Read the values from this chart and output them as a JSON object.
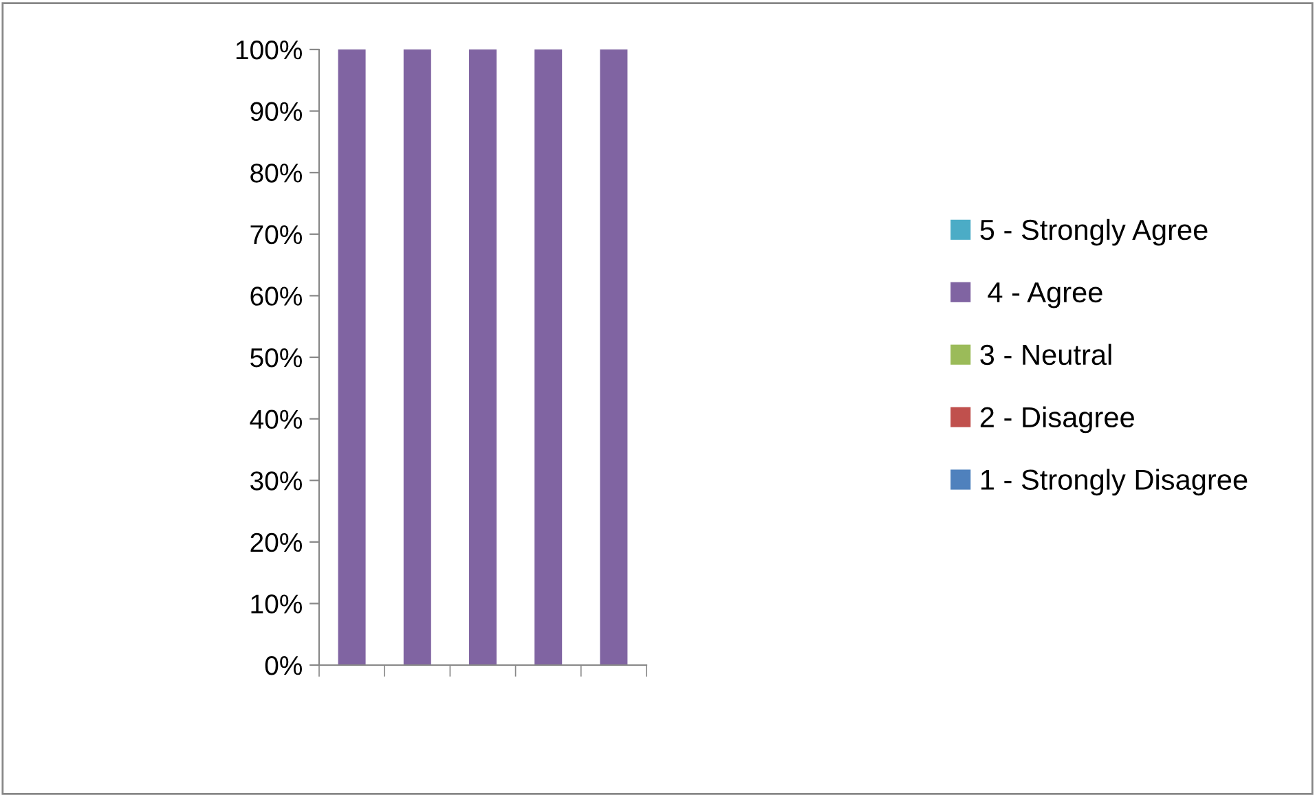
{
  "chart_data": {
    "type": "bar",
    "stacked": true,
    "categories": [
      null,
      null,
      null,
      null,
      null
    ],
    "series": [
      {
        "name": "1 - Strongly Disagree",
        "color": "#4f81bd",
        "values": [
          0,
          0,
          0,
          0,
          0
        ]
      },
      {
        "name": "2 - Disagree",
        "color": "#c0504d",
        "values": [
          0,
          0,
          0,
          0,
          0
        ]
      },
      {
        "name": "3 - Neutral",
        "color": "#9bbb59",
        "values": [
          0,
          0,
          0,
          0,
          0
        ]
      },
      {
        "name": " 4 - Agree",
        "color": "#8064a2",
        "values": [
          100,
          100,
          100,
          100,
          100
        ]
      },
      {
        "name": "5 - Strongly Agree",
        "color": "#4bacc6",
        "values": [
          0,
          0,
          0,
          0,
          0
        ]
      }
    ],
    "ylim": [
      0,
      100
    ],
    "yticks": [
      {
        "value": 0,
        "label": "0%"
      },
      {
        "value": 10,
        "label": "10%"
      },
      {
        "value": 20,
        "label": "20%"
      },
      {
        "value": 30,
        "label": "30%"
      },
      {
        "value": 40,
        "label": "40%"
      },
      {
        "value": 50,
        "label": "50%"
      },
      {
        "value": 60,
        "label": "60%"
      },
      {
        "value": 70,
        "label": "70%"
      },
      {
        "value": 80,
        "label": "80%"
      },
      {
        "value": 90,
        "label": "90%"
      },
      {
        "value": 100,
        "label": "100%"
      }
    ],
    "grid": false,
    "legend": "right"
  }
}
